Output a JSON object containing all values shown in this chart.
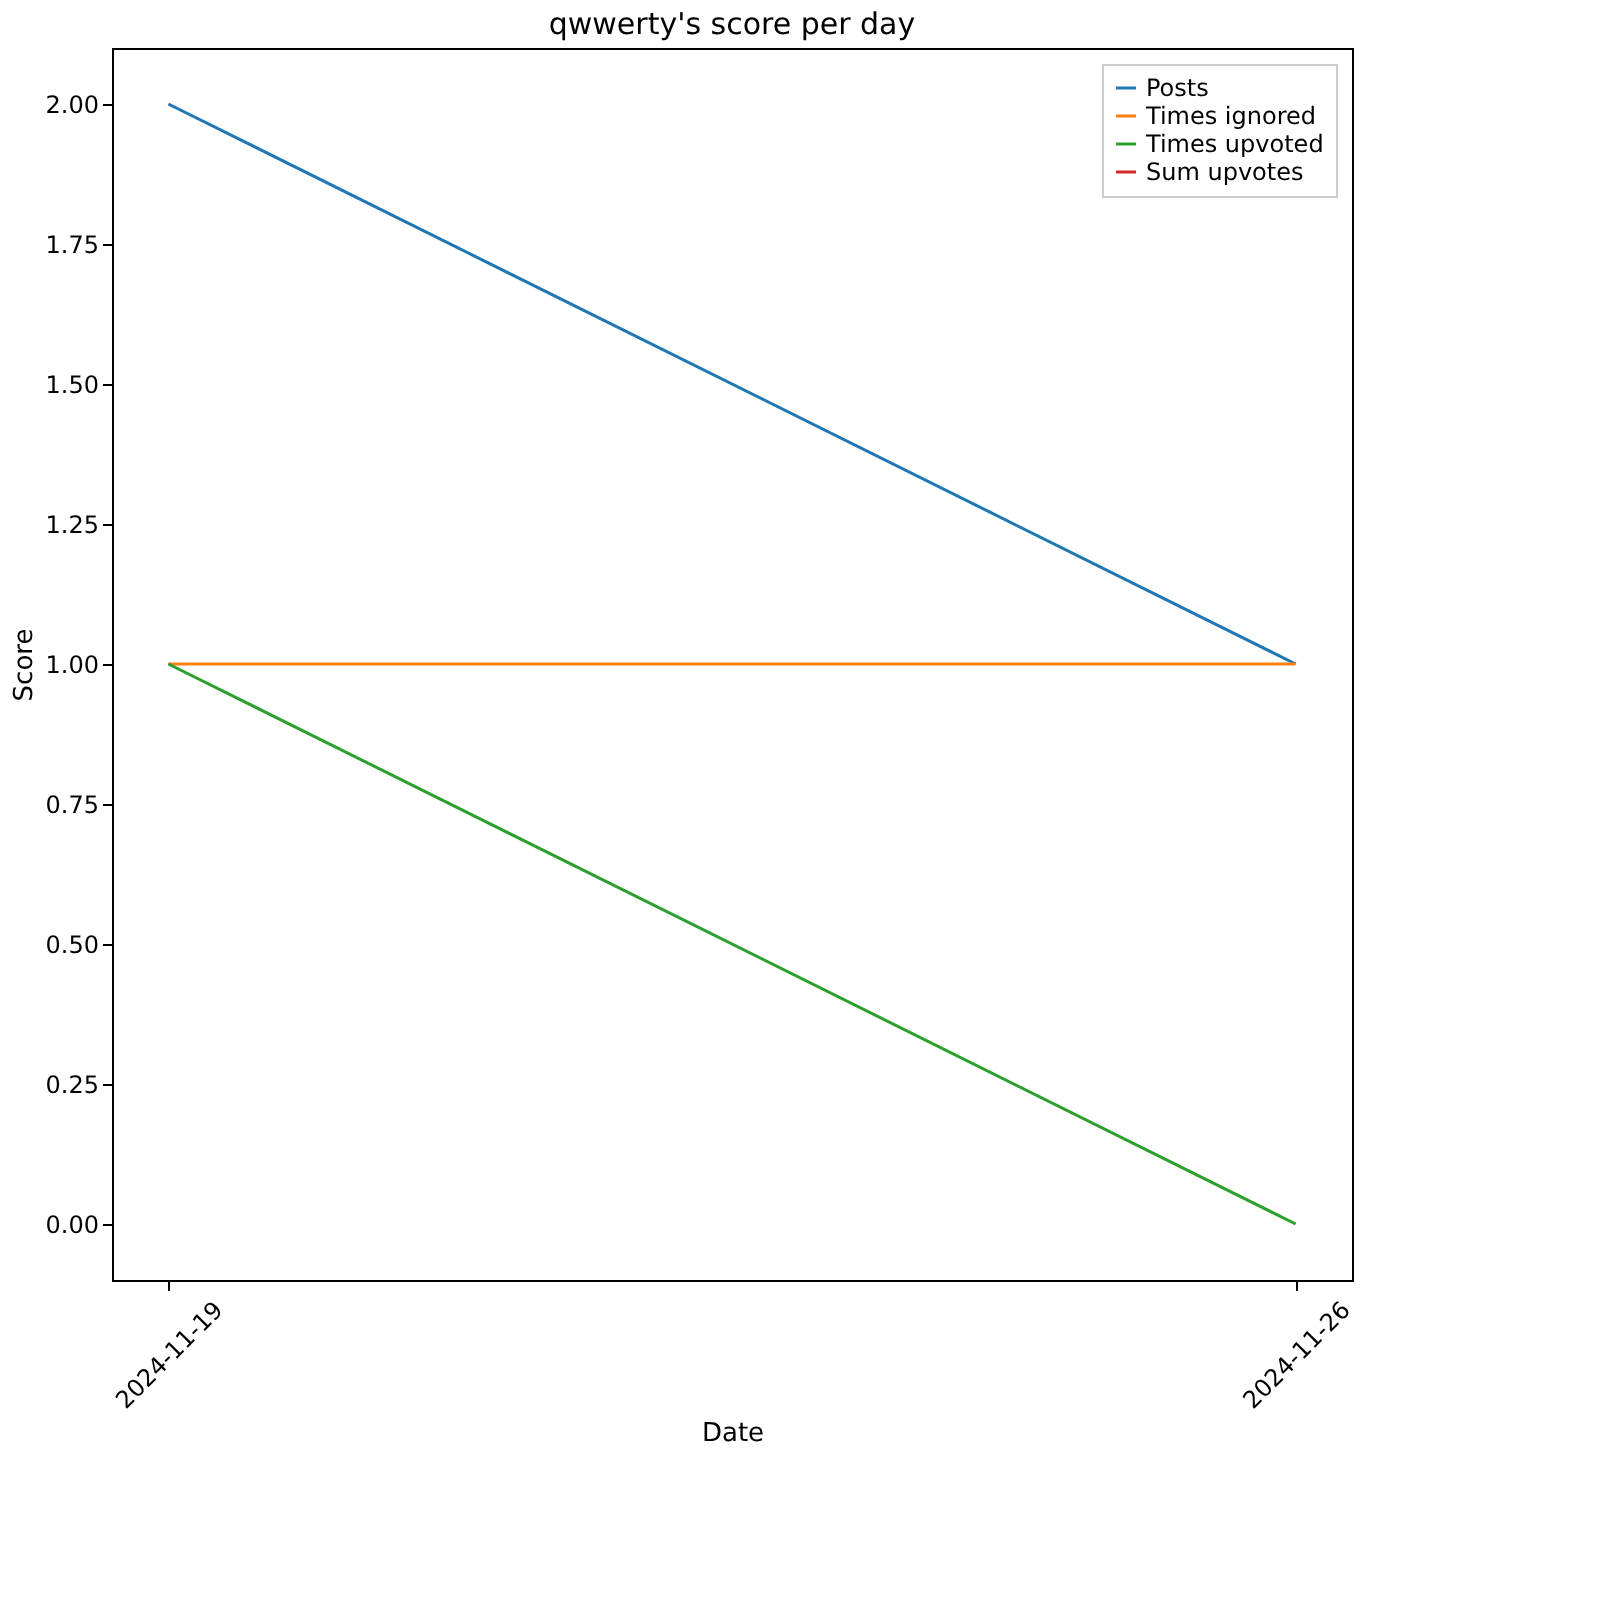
{
  "chart_data": {
    "type": "line",
    "title": "qwwerty's score per day",
    "xlabel": "Date",
    "ylabel": "Score",
    "x": [
      "2024-11-19",
      "2024-11-26"
    ],
    "xlim": [
      "2024-11-18T15:36",
      "2024-11-26T08:24"
    ],
    "xticks": [
      "2024-11-19",
      "2024-11-26"
    ],
    "series": [
      {
        "name": "Posts",
        "color": "#1f77b4",
        "values": [
          2,
          1
        ]
      },
      {
        "name": "Times ignored",
        "color": "#ff7f0e",
        "values": [
          1,
          1
        ]
      },
      {
        "name": "Times upvoted",
        "color": "#2ca02c",
        "values": [
          1,
          0
        ]
      },
      {
        "name": "Sum upvotes",
        "color": "#d62728",
        "values": [
          null,
          null
        ]
      }
    ],
    "ylim": [
      -0.1,
      2.1
    ],
    "yticks": [
      {
        "value": 0,
        "label": "0.00"
      },
      {
        "value": 0.25,
        "label": "0.25"
      },
      {
        "value": 0.5,
        "label": "0.50"
      },
      {
        "value": 0.75,
        "label": "0.75"
      },
      {
        "value": 1,
        "label": "1.00"
      },
      {
        "value": 1.25,
        "label": "1.25"
      },
      {
        "value": 1.5,
        "label": "1.50"
      },
      {
        "value": 1.75,
        "label": "1.75"
      },
      {
        "value": 2,
        "label": "2.00"
      }
    ],
    "grid": false,
    "legend": "top right",
    "marker": "none",
    "line_style": "solid"
  }
}
